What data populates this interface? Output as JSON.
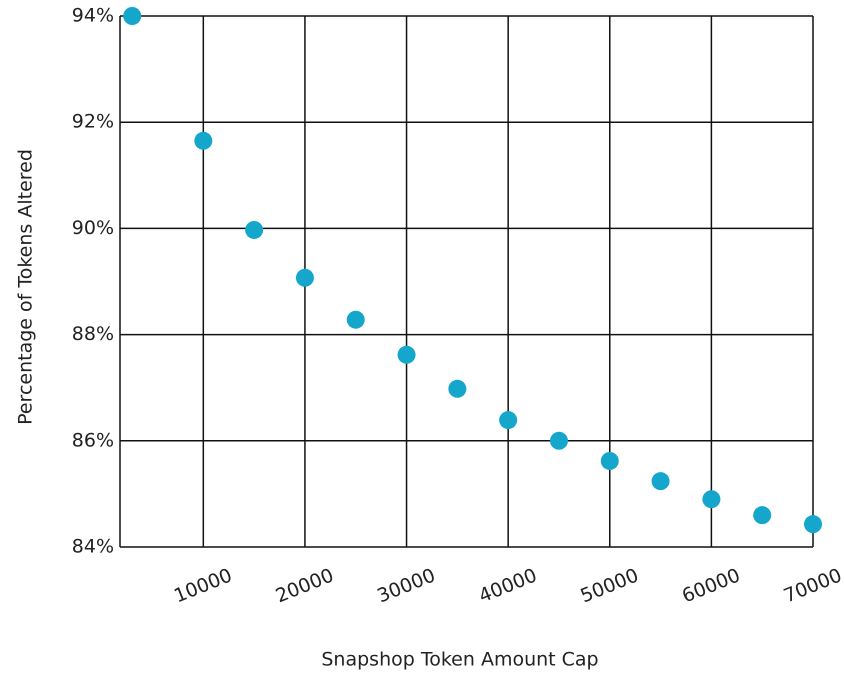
{
  "chart_data": {
    "type": "scatter",
    "x_label": "Snapshop Token Amount Cap",
    "y_label": "Percentage of Tokens Altered",
    "color": "#15a6cc",
    "x": [
      3000,
      10000,
      15000,
      20000,
      25000,
      30000,
      35000,
      40000,
      45000,
      50000,
      55000,
      60000,
      65000,
      70000
    ],
    "values": [
      94.0,
      91.65,
      89.97,
      89.07,
      88.28,
      87.62,
      86.98,
      86.39,
      86.0,
      85.62,
      85.24,
      84.9,
      84.6,
      84.43
    ],
    "xlim": [
      1800,
      70000
    ],
    "xticks": [
      10000,
      20000,
      30000,
      40000,
      50000,
      60000,
      70000
    ],
    "ylim": [
      84,
      94
    ],
    "yticks": [
      {
        "value": 84,
        "label": "84%"
      },
      {
        "value": 86,
        "label": "86%"
      },
      {
        "value": 88,
        "label": "88%"
      },
      {
        "value": 90,
        "label": "90%"
      },
      {
        "value": 92,
        "label": "92%"
      },
      {
        "value": 94,
        "label": "94%"
      }
    ],
    "grid": true
  }
}
